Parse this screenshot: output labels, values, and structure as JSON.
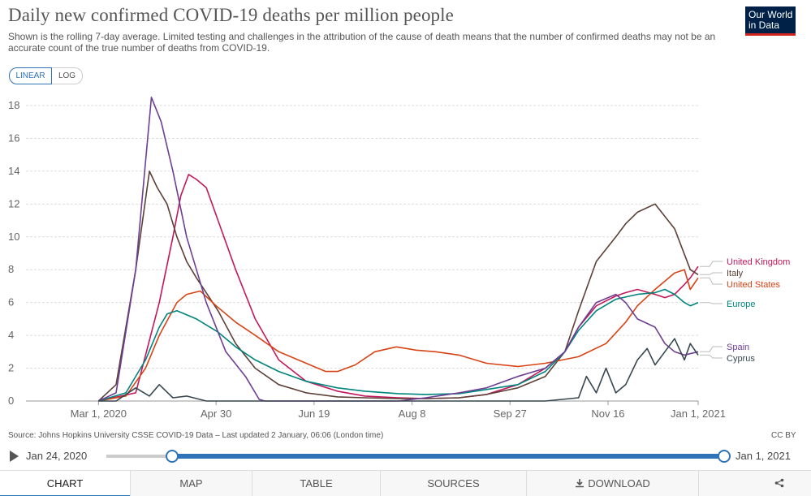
{
  "header": {
    "title": "Daily new confirmed COVID-19 deaths per million people",
    "subtitle": "Shown is the rolling 7-day average. Limited testing and challenges in the attribution of the cause of death means that the number of confirmed deaths may not be an accurate count of the true number of deaths from COVID-19.",
    "logo_line1": "Our World",
    "logo_line2": "in Data",
    "logo_color": "#002147",
    "logo_accent": "#ce261e"
  },
  "scale_toggle": {
    "linear_label": "LINEAR",
    "log_label": "LOG",
    "selected": "LINEAR"
  },
  "chart_data": {
    "type": "line",
    "title": "Daily new confirmed COVID-19 deaths per million people",
    "ylim": [
      0,
      18
    ],
    "yticks": [
      0,
      2,
      4,
      6,
      8,
      10,
      12,
      14,
      16,
      18
    ],
    "xlim": [
      "2020-01-24",
      "2021-01-01"
    ],
    "xticks": [
      {
        "date": "2020-03-01",
        "label": "Mar 1, 2020"
      },
      {
        "date": "2020-04-30",
        "label": "Apr 30"
      },
      {
        "date": "2020-06-19",
        "label": "Jun 19"
      },
      {
        "date": "2020-08-08",
        "label": "Aug 8"
      },
      {
        "date": "2020-09-27",
        "label": "Sep 27"
      },
      {
        "date": "2020-11-16",
        "label": "Nov 16"
      },
      {
        "date": "2021-01-01",
        "label": "Jan 1, 2021"
      }
    ],
    "grid": true,
    "legend": "right",
    "series": [
      {
        "name": "United Kingdom",
        "color": "#c2185b",
        "x": [
          "2020-03-01",
          "2020-03-20",
          "2020-04-01",
          "2020-04-08",
          "2020-04-12",
          "2020-04-16",
          "2020-04-20",
          "2020-04-25",
          "2020-05-01",
          "2020-05-10",
          "2020-05-20",
          "2020-06-01",
          "2020-06-15",
          "2020-07-01",
          "2020-07-15",
          "2020-08-01",
          "2020-08-15",
          "2020-09-01",
          "2020-09-15",
          "2020-10-01",
          "2020-10-15",
          "2020-10-25",
          "2020-11-01",
          "2020-11-10",
          "2020-11-20",
          "2020-11-25",
          "2020-12-01",
          "2020-12-10",
          "2020-12-15",
          "2020-12-20",
          "2020-12-25",
          "2020-12-28",
          "2021-01-01"
        ],
        "y": [
          0,
          0.5,
          6,
          10,
          12.5,
          13.8,
          13.5,
          13,
          11,
          8,
          5,
          2.5,
          1.2,
          0.6,
          0.3,
          0.2,
          0.15,
          0.2,
          0.4,
          1,
          2,
          3,
          4.5,
          5.8,
          6.4,
          6.6,
          6.8,
          6.5,
          6.3,
          6.5,
          7.1,
          7.5,
          8.2
        ]
      },
      {
        "name": "Italy",
        "color": "#5d4037",
        "x": [
          "2020-03-01",
          "2020-03-10",
          "2020-03-20",
          "2020-03-27",
          "2020-03-31",
          "2020-04-05",
          "2020-04-10",
          "2020-04-15",
          "2020-04-20",
          "2020-05-01",
          "2020-05-10",
          "2020-05-20",
          "2020-06-01",
          "2020-06-15",
          "2020-07-01",
          "2020-07-15",
          "2020-08-01",
          "2020-08-15",
          "2020-09-01",
          "2020-09-15",
          "2020-10-01",
          "2020-10-15",
          "2020-10-25",
          "2020-11-01",
          "2020-11-10",
          "2020-11-20",
          "2020-11-25",
          "2020-12-01",
          "2020-12-10",
          "2020-12-20",
          "2020-12-28",
          "2021-01-01"
        ],
        "y": [
          0,
          1,
          8,
          14,
          13,
          12,
          10,
          8.5,
          7.5,
          5.5,
          3.5,
          2,
          1,
          0.5,
          0.25,
          0.2,
          0.15,
          0.15,
          0.2,
          0.4,
          0.8,
          1.5,
          3,
          5.5,
          8.5,
          10,
          10.8,
          11.5,
          12,
          10.5,
          8,
          7.7
        ]
      },
      {
        "name": "United States",
        "color": "#d84315",
        "x": [
          "2020-03-01",
          "2020-03-15",
          "2020-03-25",
          "2020-04-01",
          "2020-04-10",
          "2020-04-15",
          "2020-04-22",
          "2020-04-30",
          "2020-05-10",
          "2020-05-20",
          "2020-06-01",
          "2020-06-15",
          "2020-06-25",
          "2020-07-01",
          "2020-07-10",
          "2020-07-20",
          "2020-07-31",
          "2020-08-10",
          "2020-08-20",
          "2020-09-01",
          "2020-09-15",
          "2020-10-01",
          "2020-10-15",
          "2020-11-01",
          "2020-11-15",
          "2020-11-25",
          "2020-12-01",
          "2020-12-10",
          "2020-12-20",
          "2020-12-25",
          "2020-12-28",
          "2021-01-01"
        ],
        "y": [
          0,
          0.3,
          2,
          4,
          6,
          6.5,
          6.7,
          5.8,
          4.8,
          4,
          3,
          2.3,
          1.8,
          1.8,
          2.2,
          3,
          3.3,
          3.1,
          3,
          2.8,
          2.3,
          2.1,
          2.3,
          2.7,
          3.5,
          4.8,
          5.8,
          6.8,
          7.8,
          8,
          6.8,
          7.5
        ]
      },
      {
        "name": "Europe",
        "color": "#00847e",
        "x": [
          "2020-03-01",
          "2020-03-15",
          "2020-03-25",
          "2020-04-01",
          "2020-04-05",
          "2020-04-10",
          "2020-04-20",
          "2020-05-01",
          "2020-05-10",
          "2020-05-20",
          "2020-06-01",
          "2020-06-15",
          "2020-07-01",
          "2020-07-15",
          "2020-08-01",
          "2020-08-15",
          "2020-09-01",
          "2020-09-15",
          "2020-10-01",
          "2020-10-15",
          "2020-10-25",
          "2020-11-01",
          "2020-11-10",
          "2020-11-20",
          "2020-12-01",
          "2020-12-10",
          "2020-12-15",
          "2020-12-20",
          "2020-12-25",
          "2020-12-28",
          "2021-01-01"
        ],
        "y": [
          0,
          0.5,
          2.5,
          4.5,
          5.3,
          5.5,
          5,
          4.2,
          3.3,
          2.5,
          1.8,
          1.2,
          0.8,
          0.6,
          0.45,
          0.4,
          0.45,
          0.7,
          1,
          1.8,
          3,
          4.3,
          5.5,
          6.2,
          6.5,
          6.6,
          6.8,
          6.5,
          6,
          5.8,
          6
        ]
      },
      {
        "name": "Spain",
        "color": "#6d3e91",
        "x": [
          "2020-03-01",
          "2020-03-10",
          "2020-03-20",
          "2020-03-28",
          "2020-04-02",
          "2020-04-08",
          "2020-04-15",
          "2020-04-25",
          "2020-05-05",
          "2020-05-15",
          "2020-05-22",
          "2020-05-25",
          "2020-06-01",
          "2020-06-15",
          "2020-07-01",
          "2020-07-15",
          "2020-08-01",
          "2020-08-15",
          "2020-09-01",
          "2020-09-15",
          "2020-10-01",
          "2020-10-15",
          "2020-10-25",
          "2020-11-01",
          "2020-11-10",
          "2020-11-20",
          "2020-11-25",
          "2020-12-01",
          "2020-12-10",
          "2020-12-15",
          "2020-12-20",
          "2020-12-25",
          "2021-01-01"
        ],
        "y": [
          0,
          0.5,
          8,
          18.5,
          17,
          14,
          10,
          6,
          3,
          1.5,
          0.1,
          0,
          0,
          0,
          0,
          0,
          0,
          0.2,
          0.5,
          0.8,
          1.5,
          2,
          3,
          4.5,
          6,
          6.5,
          6,
          5,
          4.5,
          3.5,
          3,
          2.8,
          3
        ]
      },
      {
        "name": "Cyprus",
        "color": "#37474f",
        "x": [
          "2020-03-01",
          "2020-03-10",
          "2020-03-20",
          "2020-03-27",
          "2020-04-01",
          "2020-04-08",
          "2020-04-15",
          "2020-04-25",
          "2020-05-15",
          "2020-06-15",
          "2020-07-15",
          "2020-08-15",
          "2020-09-15",
          "2020-10-15",
          "2020-11-01",
          "2020-11-05",
          "2020-11-10",
          "2020-11-15",
          "2020-11-20",
          "2020-11-25",
          "2020-12-01",
          "2020-12-06",
          "2020-12-10",
          "2020-12-15",
          "2020-12-20",
          "2020-12-25",
          "2020-12-28",
          "2021-01-01"
        ],
        "y": [
          0,
          0,
          0.8,
          0.3,
          1,
          0.2,
          0.3,
          0,
          0,
          0,
          0,
          0,
          0,
          0,
          0.2,
          1.5,
          0.5,
          2,
          0.5,
          1,
          2.5,
          3.2,
          2.2,
          3,
          3.8,
          2.5,
          3.5,
          2.8
        ]
      }
    ]
  },
  "footer": {
    "source": "Source: Johns Hopkins University CSSE COVID-19 Data – Last updated 2 January, 06:06 (London time)",
    "license": "CC BY"
  },
  "timeline": {
    "start_label": "Jan 24, 2020",
    "end_label": "Jan 1, 2021",
    "accent": "#2e72b8"
  },
  "tabs": [
    {
      "label": "CHART"
    },
    {
      "label": "MAP"
    },
    {
      "label": "TABLE"
    },
    {
      "label": "SOURCES"
    },
    {
      "label": "DOWNLOAD",
      "icon": "download-icon"
    },
    {
      "label": "",
      "icon": "share-icon"
    }
  ]
}
